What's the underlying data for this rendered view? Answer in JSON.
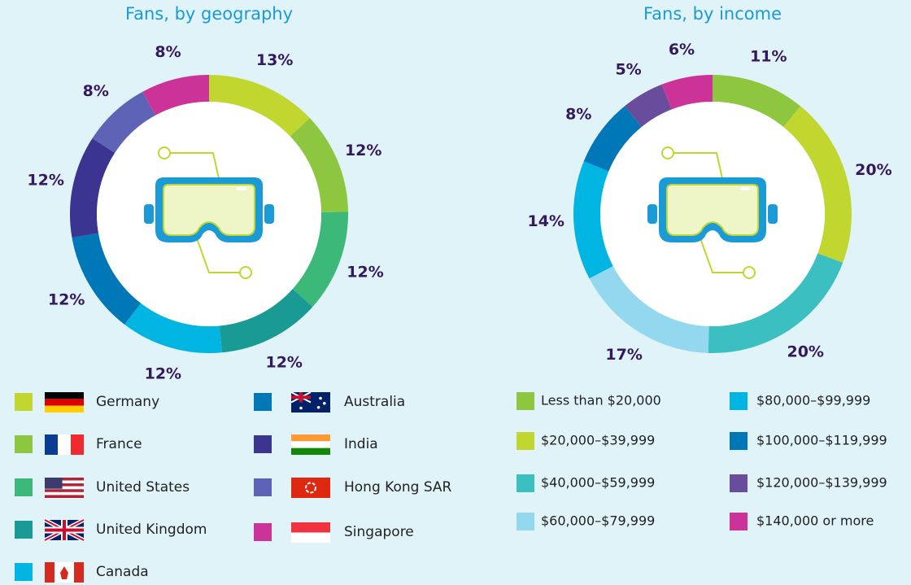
{
  "chart_data": [
    {
      "type": "donut",
      "title": "Fans, by geography",
      "categories": [
        "Germany",
        "France",
        "United States",
        "United Kingdom",
        "Canada",
        "Australia",
        "India",
        "Hong Kong SAR",
        "Singapore"
      ],
      "values": [
        13,
        12,
        12,
        12,
        12,
        12,
        12,
        8,
        8
      ],
      "value_labels": [
        "13%",
        "12%",
        "12%",
        "12%",
        "12%",
        "12%",
        "12%",
        "8%",
        "8%"
      ],
      "colors": [
        "#c1d62e",
        "#8dc63f",
        "#3cb878",
        "#1a9a94",
        "#00b5e2",
        "#0077b6",
        "#3b3591",
        "#5e63b6",
        "#cc3399"
      ]
    },
    {
      "type": "donut",
      "title": "Fans, by income",
      "categories": [
        "Less than $20,000",
        "$20,000–$39,999",
        "$40,000–$59,999",
        "$60,000–$79,999",
        "$80,000–$99,999",
        "$100,000–$119,999",
        "$120,000–$139,999",
        "$140,000 or more"
      ],
      "values": [
        11,
        20,
        20,
        17,
        14,
        8,
        5,
        6
      ],
      "value_labels": [
        "11%",
        "20%",
        "20%",
        "17%",
        "14%",
        "8%",
        "5%",
        "6%"
      ],
      "colors": [
        "#8dc63f",
        "#c1d62e",
        "#3cbfc1",
        "#93d8ef",
        "#00b5e2",
        "#0077b6",
        "#6a4c9c",
        "#cc3399"
      ]
    }
  ]
}
